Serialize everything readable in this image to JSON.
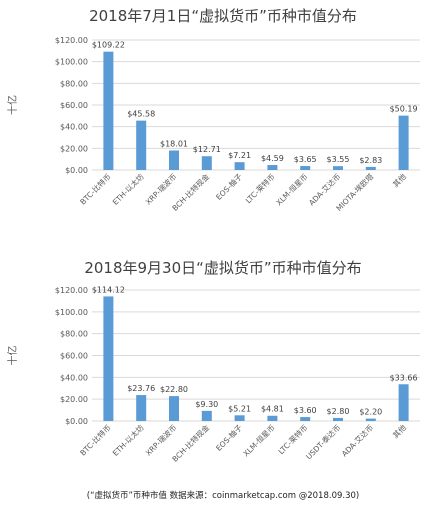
{
  "chart_data": [
    {
      "type": "bar",
      "title": "2018年7月1日“虚拟货币”币种市值分布",
      "ylabel": "十亿",
      "ylim": [
        0,
        120
      ],
      "yticks": [
        "$0.00",
        "$20.00",
        "$40.00",
        "$60.00",
        "$80.00",
        "$100.00",
        "$120.00"
      ],
      "grid": true,
      "categories": [
        "BTC-比特币",
        "ETH-以太坊",
        "XRP-瑞波币",
        "BCH-比特现金",
        "EOS-柚子",
        "LTC-莱特币",
        "XLM-恒星币",
        "ADA-艾达币",
        "MIOTA-埃欧塔",
        "其他"
      ],
      "values": [
        109.22,
        45.58,
        18.01,
        12.71,
        7.21,
        4.59,
        3.65,
        3.55,
        2.83,
        50.19
      ],
      "labels": [
        "$109.22",
        "$45.58",
        "$18.01",
        "$12.71",
        "$7.21",
        "$4.59",
        "$3.65",
        "$3.55",
        "$2.83",
        "$50.19"
      ]
    },
    {
      "type": "bar",
      "title": "2018年9月30日“虚拟货币”币种市值分布",
      "ylabel": "十亿",
      "ylim": [
        0,
        120
      ],
      "yticks": [
        "$0.00",
        "$20.00",
        "$40.00",
        "$60.00",
        "$80.00",
        "$100.00",
        "$120.00"
      ],
      "grid": true,
      "categories": [
        "BTC-比特币",
        "ETH-以太坊",
        "XRP-瑞波币",
        "BCH-比特现金",
        "EOS-柚子",
        "XLM-恒星币",
        "LTC-莱特币",
        "USDT-泰达币",
        "ADA-艾达币",
        "其他"
      ],
      "values": [
        114.12,
        23.76,
        22.8,
        9.3,
        5.21,
        4.81,
        3.6,
        2.8,
        2.2,
        33.66
      ],
      "labels": [
        "$114.12",
        "$23.76",
        "$22.80",
        "$9.30",
        "$5.21",
        "$4.81",
        "$3.60",
        "$2.80",
        "$2.20",
        "$33.66"
      ]
    }
  ],
  "footer": "(“虚拟货币”币种市值  数据来源：coinmarketcap.com @2018.09.30)",
  "colors": {
    "bar": "#5b9bd5",
    "grid": "#d9d9d9"
  }
}
